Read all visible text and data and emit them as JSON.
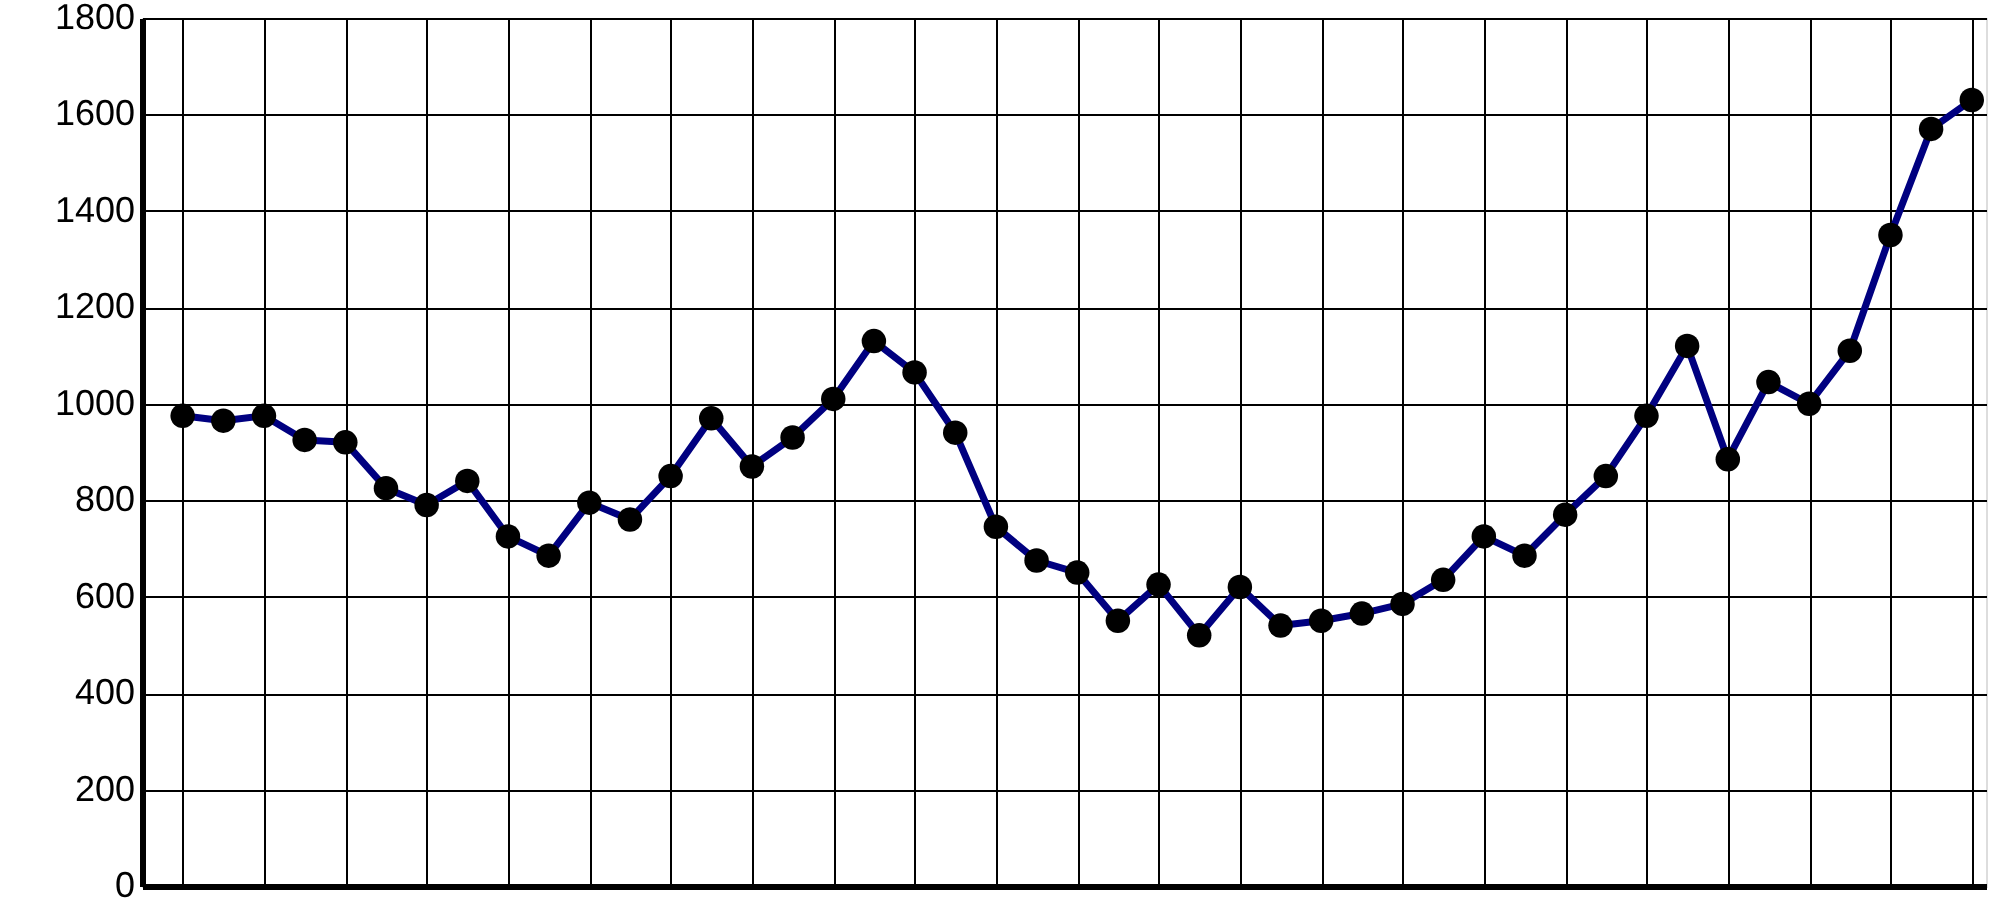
{
  "chart_data": {
    "type": "line",
    "categories": [
      null,
      null,
      null,
      null,
      null,
      null,
      null,
      null,
      null,
      null,
      null,
      null,
      null,
      null,
      null,
      null,
      null,
      null,
      null,
      null,
      null,
      null,
      null,
      null,
      null,
      null,
      null,
      null,
      null,
      null,
      null,
      null,
      null,
      null,
      null,
      null,
      null,
      null,
      null,
      null,
      null,
      null,
      null,
      null,
      null
    ],
    "series": [
      {
        "color": "#000080",
        "values": [
          975,
          965,
          975,
          925,
          920,
          825,
          790,
          840,
          725,
          685,
          795,
          760,
          850,
          970,
          870,
          930,
          1010,
          1130,
          1065,
          940,
          745,
          675,
          650,
          550,
          625,
          520,
          620,
          540,
          550,
          565,
          585,
          635,
          725,
          685,
          770,
          850,
          975,
          1120,
          885,
          1045,
          1000,
          1110,
          1350,
          1570,
          1630
        ]
      }
    ],
    "ylim": [
      0,
      1800
    ],
    "yticks": [
      0,
      200,
      400,
      600,
      800,
      1000,
      1200,
      1400,
      1600,
      1800
    ],
    "grid": true,
    "marker": "circle",
    "line_style": "solid",
    "tick_labels": "y"
  }
}
